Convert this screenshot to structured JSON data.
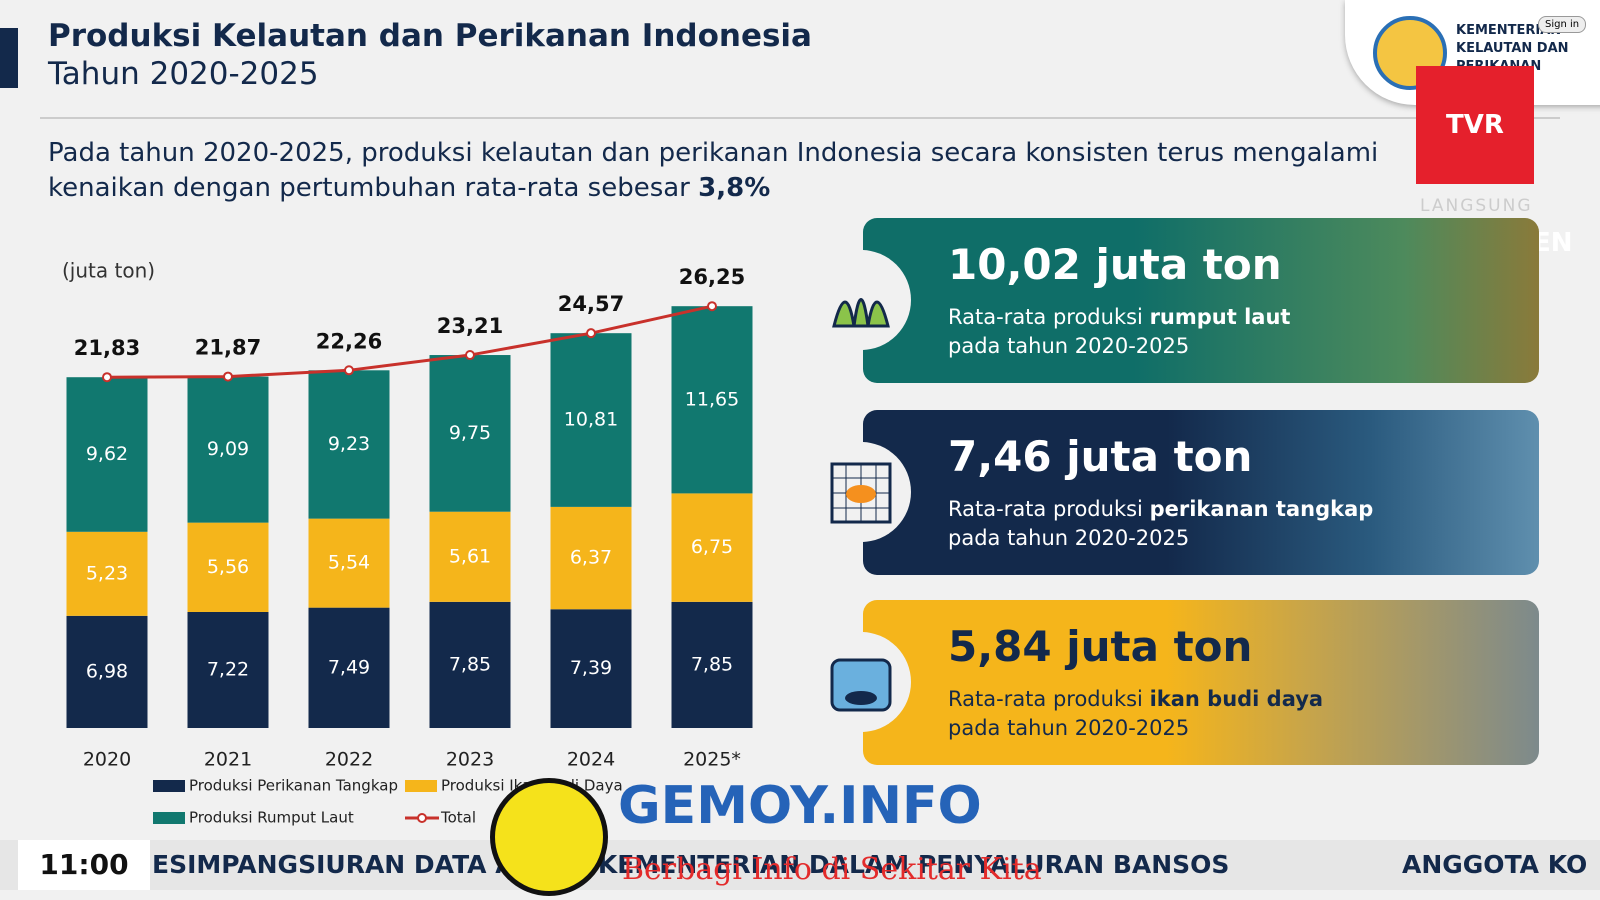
{
  "header": {
    "title": "Produksi Kelautan dan Perikanan Indonesia",
    "subtitle": "Tahun 2020-2025",
    "text": "Pada tahun 2020-2025, produksi kelautan dan perikanan Indonesia secara konsisten terus mengalami kenaikan dengan pertumbuhan rata-rata sebesar ",
    "highlight": "3,8%"
  },
  "logo": {
    "org": "KEMENTERIAN KELAUTAN DAN PERIKANAN",
    "sign_in": "Sign in"
  },
  "broadcast": {
    "channel": "TVR PARLEMEN",
    "live": "LANGSUNG",
    "time": "11:00",
    "ticker": "ESIMPANGSIURAN DATA ANTAR KEMENTERIAN DALAM PENYALURAN BANSOS",
    "ticker_next": "ANGGOTA KO",
    "watermark": "GEMOY.INFO",
    "watermark_tagline": "Berbagi Info di Sekitar Kita"
  },
  "cards": [
    {
      "value": "10,02 juta ton",
      "text": "Rata-rata produksi ",
      "bold": "rumput laut",
      "text2": "pada tahun 2020-2025"
    },
    {
      "value": "7,46 juta ton",
      "text": "Rata-rata produksi ",
      "bold": "perikanan tangkap",
      "text2": "pada tahun 2020-2025"
    },
    {
      "value": "5,84 juta ton",
      "text": "Rata-rata produksi ",
      "bold": "ikan budi daya",
      "text2": "pada tahun 2020-2025"
    }
  ],
  "chart_data": {
    "type": "bar",
    "stacked": true,
    "y_label": "(juta ton)",
    "categories": [
      "2020",
      "2021",
      "2022",
      "2023",
      "2024",
      "2025*"
    ],
    "ylim": [
      0,
      29
    ],
    "series": [
      {
        "name": "Produksi Perikanan Tangkap",
        "color": "#13294b",
        "values": [
          6.98,
          7.22,
          7.49,
          7.85,
          7.39,
          7.85
        ],
        "value_labels": [
          "6,98",
          "7,22",
          "7,49",
          "7,85",
          "7,39",
          "7,85"
        ]
      },
      {
        "name": "Produksi Ikan Budi Daya",
        "color": "#f5b51b",
        "values": [
          5.23,
          5.56,
          5.54,
          5.61,
          6.37,
          6.75
        ],
        "value_labels": [
          "5,23",
          "5,56",
          "5,54",
          "5,61",
          "6,37",
          "6,75"
        ]
      },
      {
        "name": "Produksi Rumput Laut",
        "color": "#11786f",
        "values": [
          9.62,
          9.09,
          9.23,
          9.75,
          10.81,
          11.65
        ],
        "value_labels": [
          "9,62",
          "9,09",
          "9,23",
          "9,75",
          "10,81",
          "11,65"
        ]
      },
      {
        "name": "Total",
        "type": "line",
        "color": "#c8312b",
        "values": [
          21.83,
          21.87,
          22.26,
          23.21,
          24.57,
          26.25
        ],
        "value_labels": [
          "21,83",
          "21,87",
          "22,26",
          "23,21",
          "24,57",
          "26,25"
        ]
      }
    ]
  }
}
